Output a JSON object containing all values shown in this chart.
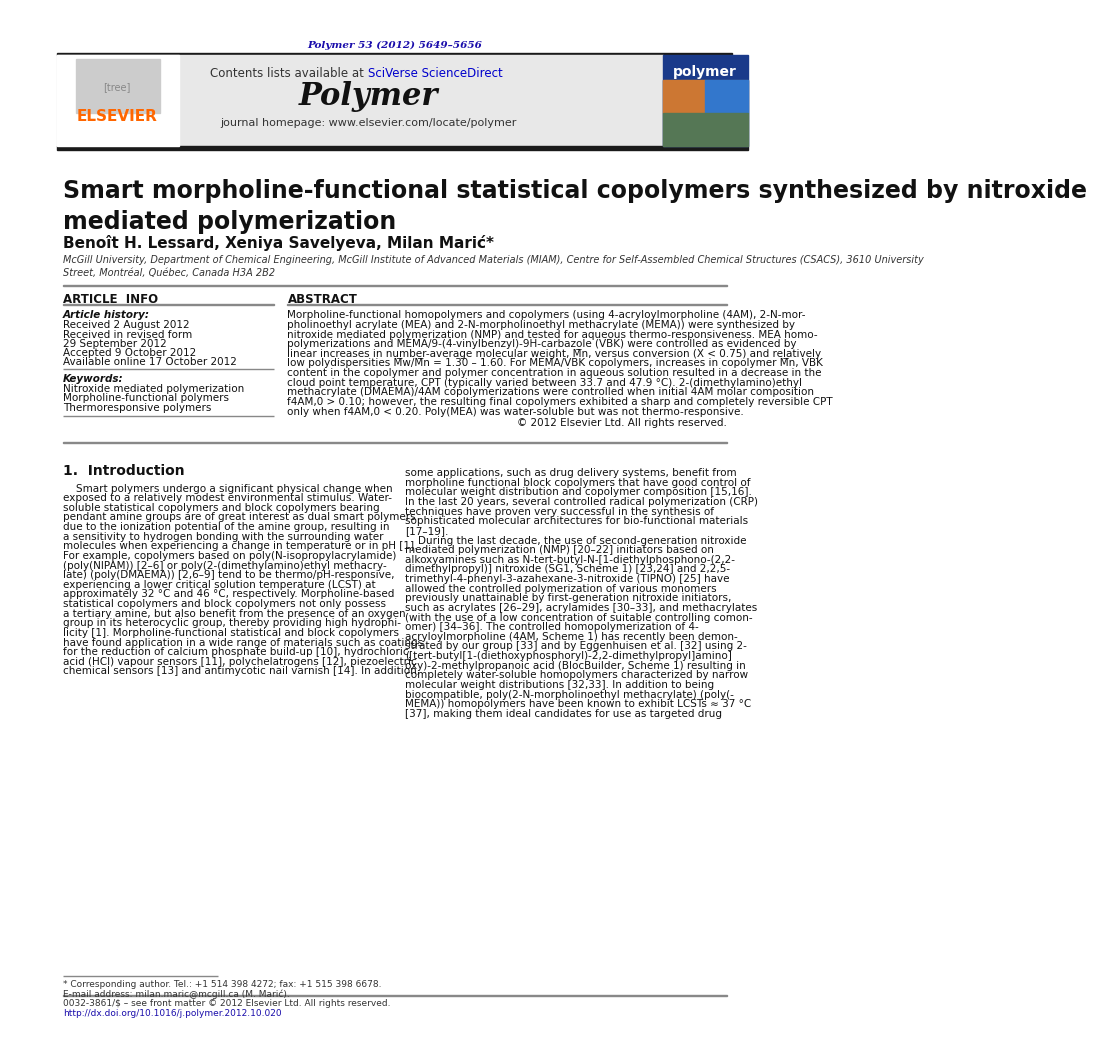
{
  "page_background": "#ffffff",
  "header_journal_ref": "Polymer 53 (2012) 5649–5656",
  "header_journal_ref_color": "#1a0dab",
  "header_bar_color": "#1a1a1a",
  "journal_header_bg": "#e8e8e8",
  "journal_name": "Polymer",
  "journal_homepage": "journal homepage: www.elsevier.com/locate/polymer",
  "journal_homepage_color": "#333333",
  "contents_text": "Contents lists available at ",
  "sciverse_text": "SciVerse ScienceDirect",
  "sciverse_color": "#0000cc",
  "elsevier_color": "#ff6600",
  "title": "Smart morpholine-functional statistical copolymers synthesized by nitroxide\nmediated polymerization",
  "authors": "Benoît H. Lessard, Xeniya Savelyeva, Milan Marić*",
  "affiliation": "McGill University, Department of Chemical Engineering, McGill Institute of Advanced Materials (MIAM), Centre for Self-Assembled Chemical Structures (CSACS), 3610 University\nStreet, Montréal, Québec, Canada H3A 2B2",
  "article_info_header": "ARTICLE  INFO",
  "abstract_header": "ABSTRACT",
  "article_history_label": "Article history:",
  "received_date": "Received 2 August 2012",
  "revised_line1": "Received in revised form",
  "revised_line2": "29 September 2012",
  "accepted_date": "Accepted 9 October 2012",
  "available_date": "Available online 17 October 2012",
  "keywords_label": "Keywords:",
  "keyword1": "Nitroxide mediated polymerization",
  "keyword2": "Morpholine-functional polymers",
  "keyword3": "Thermoresponsive polymers",
  "copyright": "© 2012 Elsevier Ltd. All rights reserved.",
  "intro_header": "1.  Introduction",
  "footer_text": "0032-3861/$ – see front matter © 2012 Elsevier Ltd. All rights reserved.\nhttp://dx.doi.org/10.1016/j.polymer.2012.10.020",
  "doi_color": "#1a0dab",
  "footnote1": "* Corresponding author. Tel.: +1 514 398 4272; fax: +1 515 398 6678.",
  "footnote2": "E-mail address: milan.maric@mcgill.ca (M. Marić).",
  "abstract_lines": [
    "Morpholine-functional homopolymers and copolymers (using 4-acryloylmorpholine (4AM), 2-N-mor-",
    "pholinoethyl acrylate (MEA) and 2-N-morpholinoethyl methacrylate (MEMA)) were synthesized by",
    "nitroxide mediated polymerization (NMP) and tested for aqueous thermo-responsiveness. MEA homo-",
    "polymerizations and MEMA/9-(4-vinylbenzyl)-9H-carbazole (VBK) were controlled as evidenced by",
    "linear increases in number-average molecular weight, M̅n, versus conversion (X < 0.75) and relatively",
    "low polydispersities M̅w/M̅n = 1.30 – 1.60. For MEMA/VBK copolymers, increases in copolymer M̅n, VBK",
    "content in the copolymer and polymer concentration in aqueous solution resulted in a decrease in the",
    "cloud point temperature, CPT (typically varied between 33.7 and 47.9 °C). 2-(dimethylamino)ethyl",
    "methacrylate (DMAEMA)/4AM copolymerizations were controlled when initial 4AM molar composition",
    "f4AM,0 > 0.10; however, the resulting final copolymers exhibited a sharp and completely reversible CPT",
    "only when f4AM,0 < 0.20. Poly(MEA) was water-soluble but was not thermo-responsive."
  ],
  "intro_col1_lines": [
    "    Smart polymers undergo a significant physical change when",
    "exposed to a relatively modest environmental stimulus. Water-",
    "soluble statistical copolymers and block copolymers bearing",
    "pendant amine groups are of great interest as dual smart polymers",
    "due to the ionization potential of the amine group, resulting in",
    "a sensitivity to hydrogen bonding with the surrounding water",
    "molecules when experiencing a change in temperature or in pH [1].",
    "For example, copolymers based on poly(N-isopropylacrylamide)",
    "(poly(NIPAM)) [2–6] or poly(2-(dimethylamino)ethyl methacry-",
    "late) (poly(DMAEMA)) [2,6–9] tend to be thermo/pH-responsive,",
    "experiencing a lower critical solution temperature (LCST) at",
    "approximately 32 °C and 46 °C, respectively. Morpholine-based",
    "statistical copolymers and block copolymers not only possess",
    "a tertiary amine, but also benefit from the presence of an oxygen",
    "group in its heterocyclic group, thereby providing high hydrophi-",
    "licity [1]. Morpholine-functional statistical and block copolymers",
    "have found application in a wide range of materials such as coatings",
    "for the reduction of calcium phosphate build-up [10], hydrochloric",
    "acid (HCl) vapour sensors [11], polychelatrogens [12], piezoelectric",
    "chemical sensors [13] and antimycotic nail varnish [14]. In addition,"
  ],
  "intro_col2_lines": [
    "some applications, such as drug delivery systems, benefit from",
    "morpholine functional block copolymers that have good control of",
    "molecular weight distribution and copolymer composition [15,16].",
    "In the last 20 years, several controlled radical polymerization (CRP)",
    "techniques have proven very successful in the synthesis of",
    "sophisticated molecular architectures for bio-functional materials",
    "[17–19].",
    "    During the last decade, the use of second-generation nitroxide",
    "mediated polymerization (NMP) [20–22] initiators based on",
    "alkoxyamines such as N-tert-butyl-N-[1-diethylphosphono-(2,2-",
    "dimethylpropyl)] nitroxide (SG1, Scheme 1) [23,24] and 2,2,5-",
    "trimethyl-4-phenyl-3-azahexane-3-nitroxide (TIPNO) [25] have",
    "allowed the controlled polymerization of various monomers",
    "previously unattainable by first-generation nitroxide initiators,",
    "such as acrylates [26–29], acrylamides [30–33], and methacrylates",
    "(with the use of a low concentration of suitable controlling comon-",
    "omer) [34–36]. The controlled homopolymerization of 4-",
    "acryloylmorpholine (4AM, Scheme 1) has recently been demon-",
    "strated by our group [33] and by Eggenhuisen et al. [32] using 2-",
    "([tert-butyl[1-(diethoxyphosphoryl)-2,2-dimethylpropyl]amino]",
    "oxy)-2-methylpropanoic acid (BlocBuilder, Scheme 1) resulting in",
    "completely water-soluble homopolymers characterized by narrow",
    "molecular weight distributions [32,33]. In addition to being",
    "biocompatible, poly(2-N-morpholinoethyl methacrylate) (poly(-",
    "MEMA)) homopolymers have been known to exhibit LCSTs ≈ 37 °C",
    "[37], making them ideal candidates for use as targeted drug"
  ]
}
